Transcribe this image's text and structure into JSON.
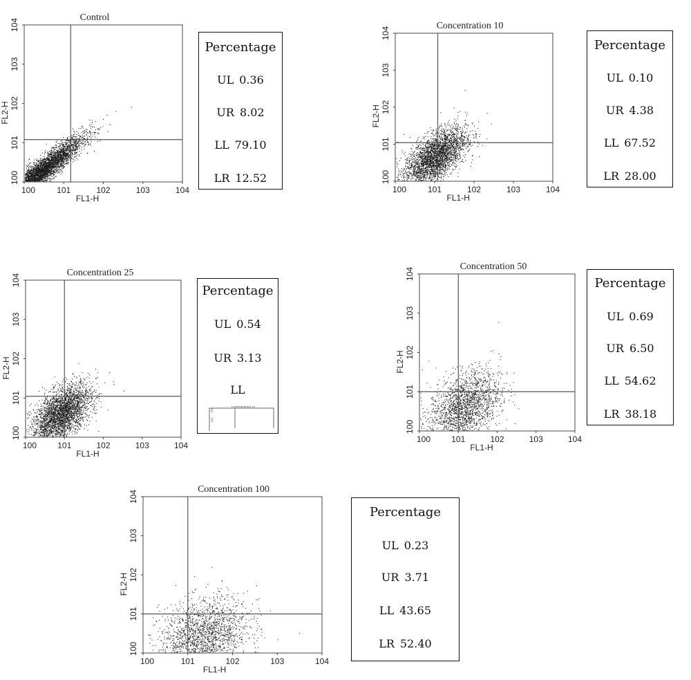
{
  "chart_data": [
    {
      "type": "scatter",
      "title": "Control",
      "xlabel": "FL1-H",
      "ylabel": "FL2-H",
      "xscale": "log",
      "yscale": "log",
      "xlim": [
        1,
        10000
      ],
      "ylim": [
        1,
        10000
      ],
      "x_ticks": [
        "100",
        "101",
        "102",
        "103",
        "104"
      ],
      "y_ticks": [
        "100",
        "101",
        "102",
        "103",
        "104"
      ],
      "quadrant_gate": {
        "x": 15,
        "y": 12
      },
      "distribution": "diagonal tight cloud along x=y, concentrated below 30",
      "stats_title": "Percentage",
      "stats": [
        {
          "label": "UL",
          "value": "0.36"
        },
        {
          "label": "UR",
          "value": "8.02"
        },
        {
          "label": "LL",
          "value": "79.10"
        },
        {
          "label": "LR",
          "value": "12.52"
        }
      ]
    },
    {
      "type": "scatter",
      "title": "Concentration 10",
      "xlabel": "FL1-H",
      "ylabel": "FL2-H",
      "xscale": "log",
      "yscale": "log",
      "xlim": [
        1,
        10000
      ],
      "ylim": [
        1,
        10000
      ],
      "x_ticks": [
        "100",
        "101",
        "102",
        "103",
        "104"
      ],
      "y_ticks": [
        "100",
        "101",
        "102",
        "103",
        "104"
      ],
      "quadrant_gate": {
        "x": 12,
        "y": 11
      },
      "distribution": "dense cloud centred near x=10, y=5",
      "stats_title": "Percentage",
      "stats": [
        {
          "label": "UL",
          "value": "0.10"
        },
        {
          "label": "UR",
          "value": "4.38"
        },
        {
          "label": "LL",
          "value": "67.52"
        },
        {
          "label": "LR",
          "value": "28.00"
        }
      ]
    },
    {
      "type": "scatter",
      "title": "Concentration 25",
      "xlabel": "FL1-H",
      "ylabel": "FL2-H",
      "xscale": "log",
      "yscale": "log",
      "xlim": [
        1,
        10000
      ],
      "ylim": [
        1,
        10000
      ],
      "x_ticks": [
        "100",
        "101",
        "102",
        "103",
        "104"
      ],
      "y_ticks": [
        "100",
        "101",
        "102",
        "103",
        "104"
      ],
      "quadrant_gate": {
        "x": 10,
        "y": 11
      },
      "distribution": "dense cloud centred near x=10, y=4",
      "stats_title": "Percentage",
      "stats": [
        {
          "label": "UL",
          "value": "0.54"
        },
        {
          "label": "UR",
          "value": "3.13"
        },
        {
          "label": "LL",
          "value": ""
        }
      ],
      "inset_label": "Concentration 25",
      "inset_ticks": [
        "104",
        "103"
      ]
    },
    {
      "type": "scatter",
      "title": "Concentration 50",
      "xlabel": "FL1-H",
      "ylabel": "FL2-H",
      "xscale": "log",
      "yscale": "log",
      "xlim": [
        1,
        10000
      ],
      "ylim": [
        1,
        10000
      ],
      "x_ticks": [
        "100",
        "101",
        "102",
        "103",
        "104"
      ],
      "y_ticks": [
        "100",
        "101",
        "102",
        "103",
        "104"
      ],
      "quadrant_gate": {
        "x": 10,
        "y": 10
      },
      "distribution": "sparser cloud shifted right, centred near x=20, y=5",
      "stats_title": "Percentage",
      "stats": [
        {
          "label": "UL",
          "value": "0.69"
        },
        {
          "label": "UR",
          "value": "6.50"
        },
        {
          "label": "LL",
          "value": "54.62"
        },
        {
          "label": "LR",
          "value": "38.18"
        }
      ]
    },
    {
      "type": "scatter",
      "title": "Concentration 100",
      "xlabel": "FL1-H",
      "ylabel": "FL2-H",
      "xscale": "log",
      "yscale": "log",
      "xlim": [
        1,
        10000
      ],
      "ylim": [
        1,
        10000
      ],
      "x_ticks": [
        "100",
        "101",
        "102",
        "103",
        "104"
      ],
      "y_ticks": [
        "100",
        "101",
        "102",
        "103",
        "104"
      ],
      "quadrant_gate": {
        "x": 10,
        "y": 10
      },
      "distribution": "sparse cloud shifted right, centred near x=30, y=3",
      "stats_title": "Percentage",
      "stats": [
        {
          "label": "UL",
          "value": "0.23"
        },
        {
          "label": "UR",
          "value": "3.71"
        },
        {
          "label": "LL",
          "value": "43.65"
        },
        {
          "label": "LR",
          "value": "52.40"
        }
      ]
    }
  ]
}
